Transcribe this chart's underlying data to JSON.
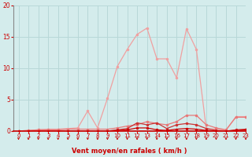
{
  "xlabel": "Vent moyen/en rafales ( km/h )",
  "x": [
    0,
    1,
    2,
    3,
    4,
    5,
    6,
    7,
    8,
    9,
    10,
    11,
    12,
    13,
    14,
    15,
    16,
    17,
    18,
    19,
    20,
    21,
    22,
    23
  ],
  "y_rafales": [
    0.0,
    0.1,
    0.2,
    0.3,
    0.3,
    0.4,
    0.5,
    3.2,
    0.5,
    5.2,
    10.3,
    13.0,
    15.4,
    16.4,
    11.5,
    11.5,
    8.5,
    16.3,
    13.0,
    0.4,
    0.3,
    0.1,
    2.3,
    2.3
  ],
  "y_line2": [
    0.0,
    0.1,
    0.2,
    0.2,
    0.2,
    0.3,
    0.3,
    0.3,
    0.3,
    0.3,
    0.5,
    0.8,
    1.0,
    1.5,
    1.2,
    1.0,
    1.5,
    2.5,
    2.5,
    1.0,
    0.5,
    0.2,
    2.2,
    2.2
  ],
  "y_line3": [
    0.0,
    0.0,
    0.0,
    0.0,
    0.0,
    0.0,
    0.0,
    0.0,
    0.0,
    0.0,
    0.2,
    0.4,
    1.3,
    1.0,
    1.3,
    0.4,
    1.0,
    1.2,
    1.0,
    0.4,
    0.1,
    0.0,
    0.2,
    0.3
  ],
  "y_moyen": [
    0.0,
    0.0,
    0.0,
    0.0,
    0.0,
    0.0,
    0.0,
    0.0,
    0.0,
    0.0,
    0.1,
    0.2,
    0.5,
    0.5,
    0.2,
    0.1,
    0.3,
    0.4,
    0.3,
    0.1,
    0.0,
    0.0,
    0.1,
    0.2
  ],
  "color_rafales": "#f0a0a0",
  "color_line2": "#e87878",
  "color_line3": "#cc3333",
  "color_moyen": "#cc0000",
  "bg_color": "#d4ecec",
  "grid_color": "#b8d8d8",
  "axis_color": "#cc0000",
  "spine_color": "#888888",
  "ylim": [
    0,
    20
  ],
  "xlim": [
    -0.5,
    23
  ],
  "yticks": [
    0,
    5,
    10,
    15,
    20
  ],
  "xticks": [
    0,
    1,
    2,
    3,
    4,
    5,
    6,
    7,
    8,
    9,
    10,
    11,
    12,
    13,
    14,
    15,
    16,
    17,
    18,
    19,
    20,
    21,
    22,
    23
  ],
  "marker_size": 2.5,
  "line_width": 0.9
}
